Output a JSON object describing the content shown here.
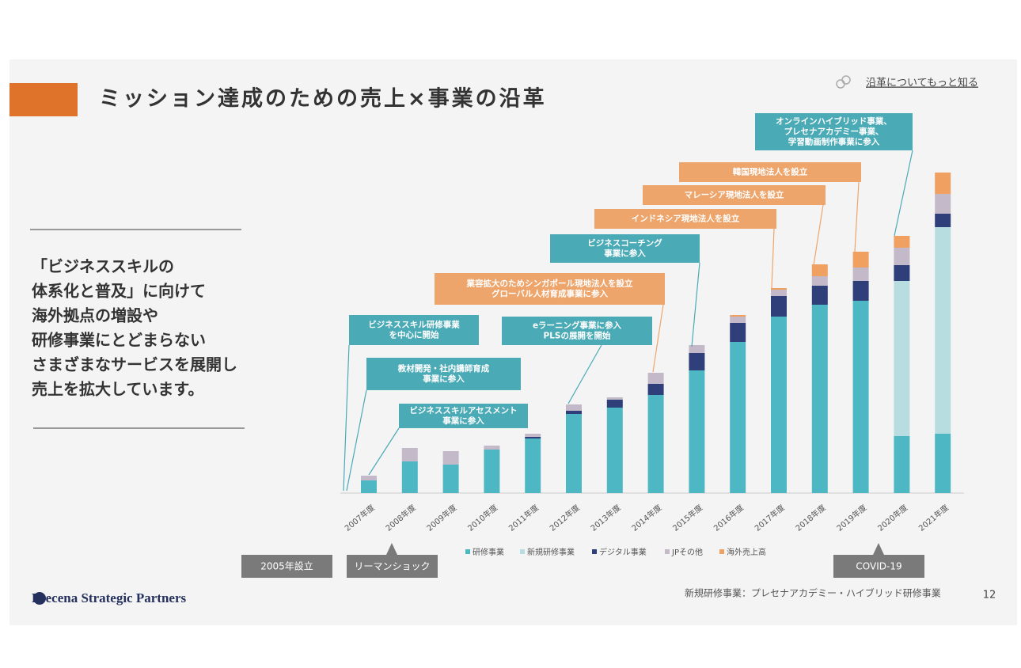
{
  "header": {
    "title": "ミッション達成のための売上×事業の沿革",
    "link": "沿革についてもっと知る"
  },
  "body": [
    "「ビジネススキルの",
    "体系化と普及」に向けて",
    "海外拠点の増設や",
    "研修事業にとどまらない",
    "さまざまなサービスを展開し",
    "売上を拡大しています。"
  ],
  "events": [
    "2005年設立",
    "リーマンショック",
    "COVID-19"
  ],
  "footer": {
    "logo": "Precena Strategic Partners",
    "note": "新規研修事業：プレセナアカデミー・ハイブリッド研修事業",
    "page": "12"
  },
  "chart_data": {
    "type": "stacked-bar",
    "categories": [
      "2007年度",
      "2008年度",
      "2009年度",
      "2010年度",
      "2011年度",
      "2012年度",
      "2013年度",
      "2014年度",
      "2015年度",
      "2016年度",
      "2017年度",
      "2018年度",
      "2019年度",
      "2020年度",
      "2021年度"
    ],
    "ylim": [
      0,
      410
    ],
    "series": [
      {
        "name": "研修事業",
        "color": "#4db8c4",
        "values": [
          16,
          40,
          36,
          55,
          69,
          100,
          108,
          124,
          155,
          191,
          223,
          238,
          243,
          72,
          75
        ]
      },
      {
        "name": "新規研修事業",
        "color": "#b7dde0",
        "values": [
          0,
          0,
          0,
          0,
          0,
          0,
          0,
          0,
          0,
          0,
          0,
          0,
          0,
          196,
          261
        ]
      },
      {
        "name": "デジタル事業",
        "color": "#2f3f7a",
        "values": [
          0,
          0,
          0,
          0,
          2,
          4,
          10,
          14,
          22,
          24,
          26,
          24,
          25,
          20,
          17
        ]
      },
      {
        "name": "JPその他",
        "color": "#c3b9c9",
        "values": [
          6,
          17,
          17,
          5,
          4,
          8,
          3,
          14,
          10,
          8,
          8,
          12,
          17,
          22,
          25
        ]
      },
      {
        "name": "海外売上高",
        "color": "#f0a060",
        "values": [
          0,
          0,
          0,
          0,
          0,
          0,
          0,
          0,
          0,
          2,
          2,
          15,
          20,
          15,
          27
        ]
      }
    ],
    "annotations": [
      {
        "lines": [
          "オンラインハイブリッド事業、",
          "プレセナアカデミー事業、",
          "学習動画制作事業に参入"
        ],
        "color": "#4aaab6"
      },
      {
        "lines": [
          "韓国現地法人を設立"
        ],
        "color": "#eea56c"
      },
      {
        "lines": [
          "マレーシア現地法人を設立"
        ],
        "color": "#eea56c"
      },
      {
        "lines": [
          "インドネシア現地法人を設立"
        ],
        "color": "#eea56c"
      },
      {
        "lines": [
          "ビジネスコーチング",
          "事業に参入"
        ],
        "color": "#4aaab6"
      },
      {
        "lines": [
          "業容拡大のためシンガポール現地法人を設立",
          "グローバル人材育成事業に参入"
        ],
        "color": "#eea56c"
      },
      {
        "lines": [
          "eラーニング事業に参入",
          "PLSの展開を開始"
        ],
        "color": "#4aaab6"
      },
      {
        "lines": [
          "ビジネススキル研修事業",
          "を中心に開始"
        ],
        "color": "#4aaab6"
      },
      {
        "lines": [
          "教材開発・社内講師育成",
          "事業に参入"
        ],
        "color": "#4aaab6"
      },
      {
        "lines": [
          "ビジネススキルアセスメント",
          "事業に参入"
        ],
        "color": "#4aaab6"
      }
    ]
  }
}
